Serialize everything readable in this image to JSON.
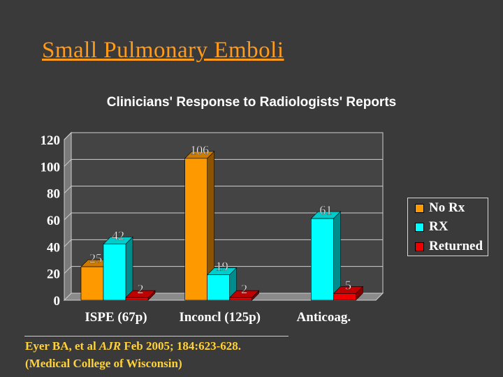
{
  "slide": {
    "title": "Small Pulmonary Emboli"
  },
  "chart_data": {
    "type": "bar",
    "title": "Clinicians' Response to Radiologists' Reports",
    "categories": [
      "ISPE (67p)",
      "Inconcl (125p)",
      "Anticoag."
    ],
    "series": [
      {
        "name": "No Rx",
        "color": "#ff9900",
        "values": [
          25,
          106,
          0
        ],
        "labels": [
          "25",
          "106",
          ""
        ]
      },
      {
        "name": "RX",
        "color": "#00ffff",
        "values": [
          42,
          19,
          61
        ],
        "labels": [
          "42",
          "19",
          "61"
        ]
      },
      {
        "name": "Returned",
        "color": "#ee0000",
        "values": [
          2,
          2,
          5
        ],
        "labels": [
          "2",
          "2",
          "5"
        ]
      }
    ],
    "yticks": [
      0,
      20,
      40,
      60,
      80,
      100,
      120
    ],
    "ylim": [
      0,
      120
    ],
    "grid": true,
    "legend_position": "right",
    "three_d": true
  },
  "citation": {
    "line1_before": "Eyer BA, et al ",
    "line1_journal": "AJR",
    "line1_after": " Feb 2005; 184:623-628.",
    "line2": "(Medical College of Wisconsin)"
  }
}
